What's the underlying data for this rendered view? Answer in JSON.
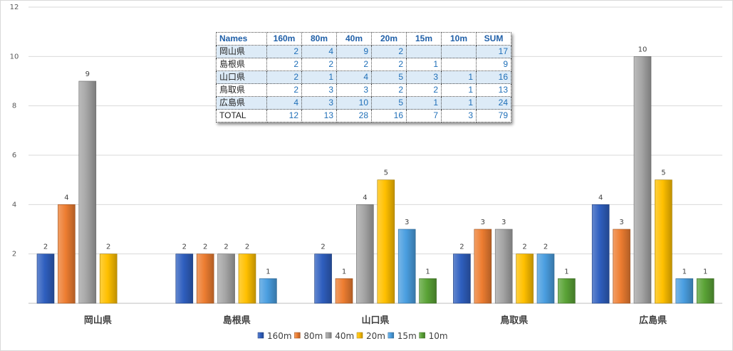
{
  "chart_data": {
    "type": "bar",
    "categories": [
      "岡山県",
      "島根県",
      "山口県",
      "鳥取県",
      "広島県"
    ],
    "series": [
      {
        "name": "160m",
        "values": [
          2,
          2,
          2,
          2,
          4
        ],
        "color": "#2f5fbf"
      },
      {
        "name": "80m",
        "values": [
          4,
          2,
          1,
          3,
          3
        ],
        "color": "#ed7d31"
      },
      {
        "name": "40m",
        "values": [
          9,
          2,
          4,
          3,
          10
        ],
        "color": "#a5a5a5"
      },
      {
        "name": "20m",
        "values": [
          2,
          2,
          5,
          2,
          5
        ],
        "color": "#ffc000"
      },
      {
        "name": "15m",
        "values": [
          null,
          1,
          3,
          2,
          1
        ],
        "color": "#4a9ee0"
      },
      {
        "name": "10m",
        "values": [
          null,
          null,
          1,
          1,
          1
        ],
        "color": "#5aa336"
      }
    ],
    "yticks": [
      "2",
      "4",
      "6",
      "8",
      "10",
      "12"
    ],
    "ylim": [
      0,
      12
    ],
    "grid": true,
    "legend_position": "bottom",
    "title": "",
    "xlabel": "",
    "ylabel": ""
  },
  "table": {
    "headers": [
      "Names",
      "160m",
      "80m",
      "40m",
      "20m",
      "15m",
      "10m",
      "SUM"
    ],
    "rows": [
      [
        "岡山県",
        "2",
        "4",
        "9",
        "2",
        "",
        "",
        "17"
      ],
      [
        "島根県",
        "2",
        "2",
        "2",
        "2",
        "1",
        "",
        "9"
      ],
      [
        "山口県",
        "2",
        "1",
        "4",
        "5",
        "3",
        "1",
        "16"
      ],
      [
        "鳥取県",
        "2",
        "3",
        "3",
        "2",
        "2",
        "1",
        "13"
      ],
      [
        "広島県",
        "4",
        "3",
        "10",
        "5",
        "1",
        "1",
        "24"
      ]
    ],
    "total": [
      "TOTAL",
      "12",
      "13",
      "28",
      "16",
      "7",
      "3",
      "79"
    ]
  }
}
